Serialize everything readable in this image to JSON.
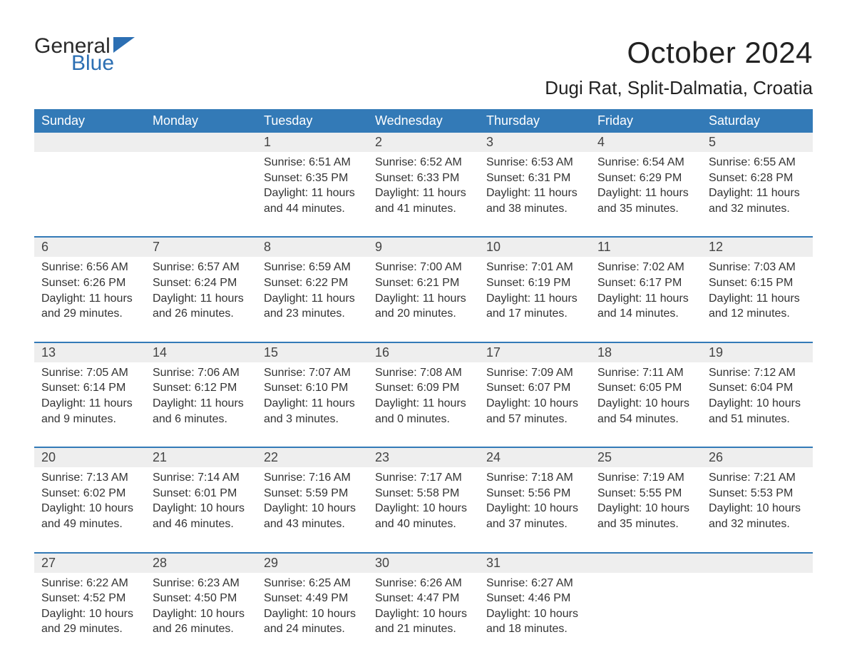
{
  "brand": {
    "text_general": "General",
    "text_blue": "Blue",
    "flag_color": "#2c6fb3",
    "text_color_general": "#2a2a2a",
    "text_color_blue": "#2c6fb3"
  },
  "title": {
    "month_year": "October 2024",
    "location": "Dugi Rat, Split-Dalmatia, Croatia",
    "title_fontsize": 42,
    "location_fontsize": 26,
    "title_color": "#222222"
  },
  "calendar": {
    "header_bg": "#337ab7",
    "header_text_color": "#ffffff",
    "daynum_bg": "#eeeeee",
    "divider_color": "#337ab7",
    "body_text_color": "#333333",
    "weekday_fontsize": 18,
    "daynum_fontsize": 18,
    "body_fontsize": 16,
    "weekdays": [
      "Sunday",
      "Monday",
      "Tuesday",
      "Wednesday",
      "Thursday",
      "Friday",
      "Saturday"
    ],
    "weeks": [
      [
        null,
        null,
        {
          "n": "1",
          "sunrise": "6:51 AM",
          "sunset": "6:35 PM",
          "daylight": "11 hours and 44 minutes."
        },
        {
          "n": "2",
          "sunrise": "6:52 AM",
          "sunset": "6:33 PM",
          "daylight": "11 hours and 41 minutes."
        },
        {
          "n": "3",
          "sunrise": "6:53 AM",
          "sunset": "6:31 PM",
          "daylight": "11 hours and 38 minutes."
        },
        {
          "n": "4",
          "sunrise": "6:54 AM",
          "sunset": "6:29 PM",
          "daylight": "11 hours and 35 minutes."
        },
        {
          "n": "5",
          "sunrise": "6:55 AM",
          "sunset": "6:28 PM",
          "daylight": "11 hours and 32 minutes."
        }
      ],
      [
        {
          "n": "6",
          "sunrise": "6:56 AM",
          "sunset": "6:26 PM",
          "daylight": "11 hours and 29 minutes."
        },
        {
          "n": "7",
          "sunrise": "6:57 AM",
          "sunset": "6:24 PM",
          "daylight": "11 hours and 26 minutes."
        },
        {
          "n": "8",
          "sunrise": "6:59 AM",
          "sunset": "6:22 PM",
          "daylight": "11 hours and 23 minutes."
        },
        {
          "n": "9",
          "sunrise": "7:00 AM",
          "sunset": "6:21 PM",
          "daylight": "11 hours and 20 minutes."
        },
        {
          "n": "10",
          "sunrise": "7:01 AM",
          "sunset": "6:19 PM",
          "daylight": "11 hours and 17 minutes."
        },
        {
          "n": "11",
          "sunrise": "7:02 AM",
          "sunset": "6:17 PM",
          "daylight": "11 hours and 14 minutes."
        },
        {
          "n": "12",
          "sunrise": "7:03 AM",
          "sunset": "6:15 PM",
          "daylight": "11 hours and 12 minutes."
        }
      ],
      [
        {
          "n": "13",
          "sunrise": "7:05 AM",
          "sunset": "6:14 PM",
          "daylight": "11 hours and 9 minutes."
        },
        {
          "n": "14",
          "sunrise": "7:06 AM",
          "sunset": "6:12 PM",
          "daylight": "11 hours and 6 minutes."
        },
        {
          "n": "15",
          "sunrise": "7:07 AM",
          "sunset": "6:10 PM",
          "daylight": "11 hours and 3 minutes."
        },
        {
          "n": "16",
          "sunrise": "7:08 AM",
          "sunset": "6:09 PM",
          "daylight": "11 hours and 0 minutes."
        },
        {
          "n": "17",
          "sunrise": "7:09 AM",
          "sunset": "6:07 PM",
          "daylight": "10 hours and 57 minutes."
        },
        {
          "n": "18",
          "sunrise": "7:11 AM",
          "sunset": "6:05 PM",
          "daylight": "10 hours and 54 minutes."
        },
        {
          "n": "19",
          "sunrise": "7:12 AM",
          "sunset": "6:04 PM",
          "daylight": "10 hours and 51 minutes."
        }
      ],
      [
        {
          "n": "20",
          "sunrise": "7:13 AM",
          "sunset": "6:02 PM",
          "daylight": "10 hours and 49 minutes."
        },
        {
          "n": "21",
          "sunrise": "7:14 AM",
          "sunset": "6:01 PM",
          "daylight": "10 hours and 46 minutes."
        },
        {
          "n": "22",
          "sunrise": "7:16 AM",
          "sunset": "5:59 PM",
          "daylight": "10 hours and 43 minutes."
        },
        {
          "n": "23",
          "sunrise": "7:17 AM",
          "sunset": "5:58 PM",
          "daylight": "10 hours and 40 minutes."
        },
        {
          "n": "24",
          "sunrise": "7:18 AM",
          "sunset": "5:56 PM",
          "daylight": "10 hours and 37 minutes."
        },
        {
          "n": "25",
          "sunrise": "7:19 AM",
          "sunset": "5:55 PM",
          "daylight": "10 hours and 35 minutes."
        },
        {
          "n": "26",
          "sunrise": "7:21 AM",
          "sunset": "5:53 PM",
          "daylight": "10 hours and 32 minutes."
        }
      ],
      [
        {
          "n": "27",
          "sunrise": "6:22 AM",
          "sunset": "4:52 PM",
          "daylight": "10 hours and 29 minutes."
        },
        {
          "n": "28",
          "sunrise": "6:23 AM",
          "sunset": "4:50 PM",
          "daylight": "10 hours and 26 minutes."
        },
        {
          "n": "29",
          "sunrise": "6:25 AM",
          "sunset": "4:49 PM",
          "daylight": "10 hours and 24 minutes."
        },
        {
          "n": "30",
          "sunrise": "6:26 AM",
          "sunset": "4:47 PM",
          "daylight": "10 hours and 21 minutes."
        },
        {
          "n": "31",
          "sunrise": "6:27 AM",
          "sunset": "4:46 PM",
          "daylight": "10 hours and 18 minutes."
        },
        null,
        null
      ]
    ],
    "labels": {
      "sunrise_prefix": "Sunrise: ",
      "sunset_prefix": "Sunset: ",
      "daylight_prefix": "Daylight: "
    }
  }
}
